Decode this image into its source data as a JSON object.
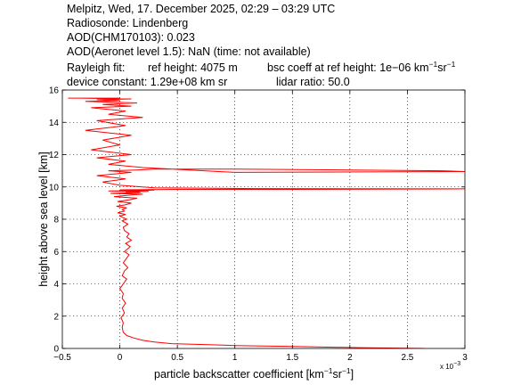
{
  "header": {
    "line1": "Melpitz, Wed, 17. December 2025, 02:29 – 03:29 UTC",
    "line2": "Radiosonde: Lindenberg",
    "line3": "AOD(CHM170103): 0.023",
    "line4": "AOD(Aeronet level 1.5): NaN   (time: not available)",
    "rayleigh_fit_label": "Rayleigh fit:",
    "ref_height": "ref height: 4075 m",
    "bsc_coeff_prefix": "bsc coeff at ref height: 1e−06 km",
    "bsc_unit_exp1": "−1",
    "bsc_unit_mid": "sr",
    "bsc_unit_exp2": "−1",
    "device_constant": "device constant: 1.29e+08 km sr",
    "lidar_ratio": "lidar ratio: 50.0"
  },
  "chart_data": {
    "type": "line",
    "xlabel_main": "particle backscatter coefficient [km",
    "xlabel_exp1": "−1",
    "xlabel_mid": "sr",
    "xlabel_exp2": "−1",
    "xlabel_end": "]",
    "ylabel": "height above sea level [km]",
    "x_multiplier_base": "x 10",
    "x_multiplier_exp": "−3",
    "xlim": [
      -0.5,
      3.0
    ],
    "ylim": [
      0,
      16
    ],
    "grid": true,
    "line_color": "#ff0000",
    "x_ticks": [
      -0.5,
      0,
      0.5,
      1,
      1.5,
      2,
      2.5,
      3
    ],
    "x_tick_labels": [
      "−0.5",
      "0",
      "0.5",
      "1",
      "1.5",
      "2",
      "2.5",
      "3"
    ],
    "y_ticks": [
      0,
      2,
      4,
      6,
      8,
      10,
      12,
      14,
      16
    ],
    "y_tick_labels": [
      "0",
      "2",
      "4",
      "6",
      "8",
      "10",
      "12",
      "14",
      "16"
    ],
    "series": [
      {
        "x": [
          2.65,
          2.1,
          1.5,
          1.0,
          0.7,
          0.45,
          0.3,
          0.2,
          0.12,
          0.06,
          0.03,
          0.02,
          0.03,
          0.01,
          0.04,
          0.02,
          0.05,
          0.02,
          0.03,
          0.0,
          0.03,
          0.06,
          0.02,
          0.04,
          0.07,
          0.03,
          0.05,
          0.08,
          0.04,
          0.09,
          0.05,
          0.1,
          0.06,
          0.08,
          0.04,
          0.03,
          0.07,
          0.02,
          0.06,
          0.03,
          0.0,
          0.05,
          -0.02,
          0.04,
          0.02,
          0.06,
          -0.03,
          0.05,
          0.1,
          -0.02,
          0.08,
          0.15,
          -0.05,
          0.1,
          0.2,
          -0.08,
          0.18,
          0.05,
          0.25,
          -0.1,
          0.15,
          0.3,
          0.0,
          0.5,
          1.5,
          2.6,
          3.0,
          1.2,
          0.3,
          0.0,
          -0.15,
          0.05,
          -0.2,
          0.1,
          -0.1,
          0.15,
          0.3,
          1.0,
          2.0,
          2.8,
          3.0,
          1.0,
          0.2,
          -0.1,
          0.05,
          -0.2,
          0.1,
          -0.25,
          0.0,
          -0.15,
          0.1,
          -0.3,
          0.05,
          -0.2,
          0.2,
          -0.1,
          0.05,
          -0.25,
          0.1,
          -0.15,
          0.15,
          -0.3,
          0.0,
          -0.2,
          0.1,
          -0.35,
          0.0,
          -0.45
        ],
        "y": [
          0.0,
          0.05,
          0.12,
          0.18,
          0.25,
          0.3,
          0.4,
          0.5,
          0.65,
          0.8,
          1.0,
          1.3,
          1.6,
          1.9,
          2.2,
          2.5,
          2.8,
          3.1,
          3.4,
          3.7,
          4.0,
          4.3,
          4.5,
          4.8,
          5.0,
          5.3,
          5.5,
          5.8,
          6.0,
          6.3,
          6.5,
          6.7,
          6.9,
          7.1,
          7.3,
          7.5,
          7.7,
          7.9,
          8.0,
          8.1,
          8.2,
          8.3,
          8.4,
          8.5,
          8.6,
          8.7,
          8.8,
          8.9,
          9.0,
          9.1,
          9.2,
          9.3,
          9.4,
          9.5,
          9.55,
          9.6,
          9.65,
          9.7,
          9.72,
          9.75,
          9.78,
          9.8,
          9.82,
          9.85,
          9.85,
          9.87,
          9.88,
          9.9,
          9.95,
          10.1,
          10.3,
          10.5,
          10.7,
          10.9,
          11.0,
          11.05,
          11.1,
          11.1,
          11.05,
          11.0,
          10.95,
          10.9,
          11.2,
          11.4,
          11.6,
          11.8,
          12.0,
          12.3,
          12.6,
          12.9,
          13.2,
          13.5,
          13.8,
          14.1,
          14.3,
          14.5,
          14.7,
          14.9,
          15.0,
          15.1,
          15.2,
          15.3,
          15.35,
          15.4,
          15.45,
          15.5,
          15.5,
          15.5
        ]
      }
    ]
  }
}
